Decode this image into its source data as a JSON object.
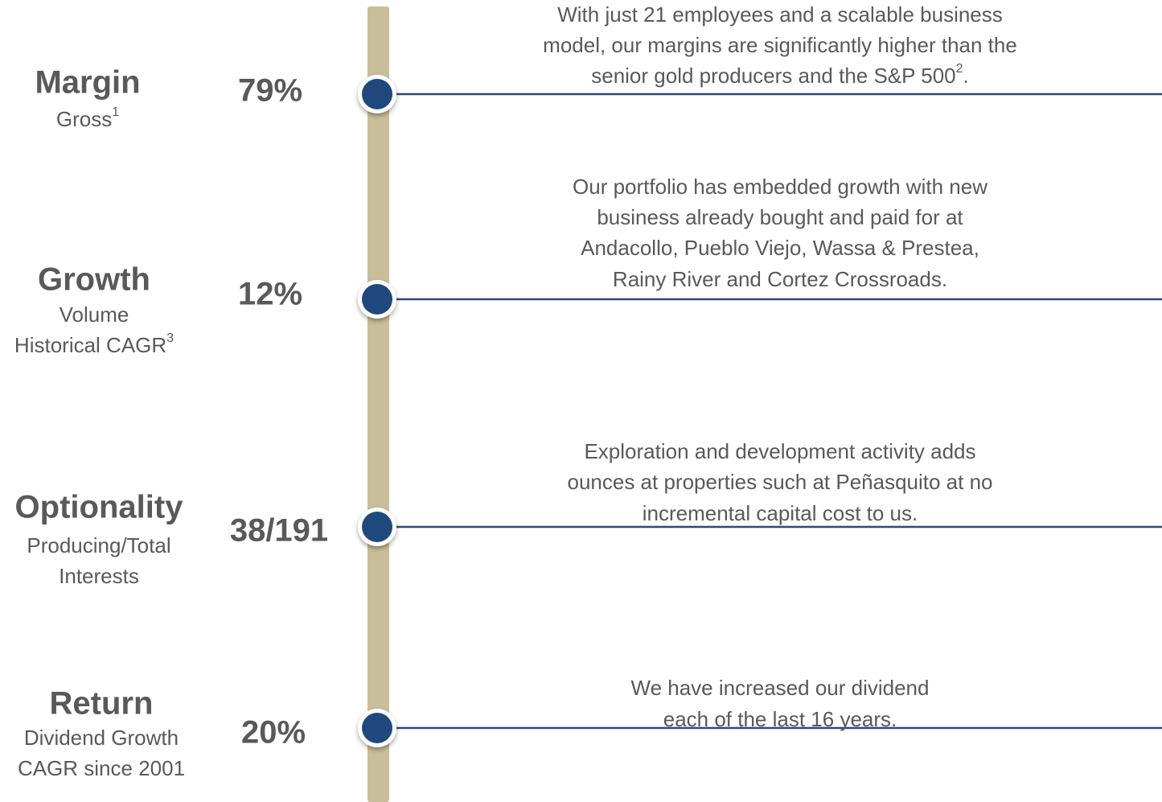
{
  "items": [
    {
      "title": "Margin",
      "subtitle": [
        {
          "text": "Gross",
          "sup": "1"
        }
      ],
      "value": "79%",
      "description": [
        {
          "text": "With just 21 employees and a scalable business"
        },
        {
          "text": "model, our margins are significantly higher than the"
        },
        {
          "text": "senior gold producers and the S&P 500",
          "sup": "2",
          "after": "."
        }
      ]
    },
    {
      "title": "Growth",
      "subtitle": [
        {
          "text": "Volume"
        },
        {
          "text": "Historical CAGR",
          "sup": "3"
        }
      ],
      "value": "12%",
      "description": [
        {
          "text": "Our portfolio has embedded growth with new"
        },
        {
          "text": "business already bought and paid for at"
        },
        {
          "text": "Andacollo, Pueblo Viejo, Wassa & Prestea,"
        },
        {
          "text": "Rainy River and Cortez Crossroads."
        }
      ]
    },
    {
      "title": "Optionality",
      "subtitle": [
        {
          "text": "Producing/Total"
        },
        {
          "text": "Interests"
        }
      ],
      "value": "38/191",
      "description": [
        {
          "text": "Exploration and development activity adds"
        },
        {
          "text": "ounces at properties such at Peñasquito at no"
        },
        {
          "text": "incremental capital cost to us."
        }
      ]
    },
    {
      "title": "Return",
      "subtitle": [
        {
          "text": "Dividend Growth"
        },
        {
          "text": "CAGR since 2001"
        }
      ],
      "value": "20%",
      "description": [
        {
          "text": "We have increased our dividend"
        },
        {
          "text": "each of the last 16 years."
        }
      ]
    }
  ]
}
